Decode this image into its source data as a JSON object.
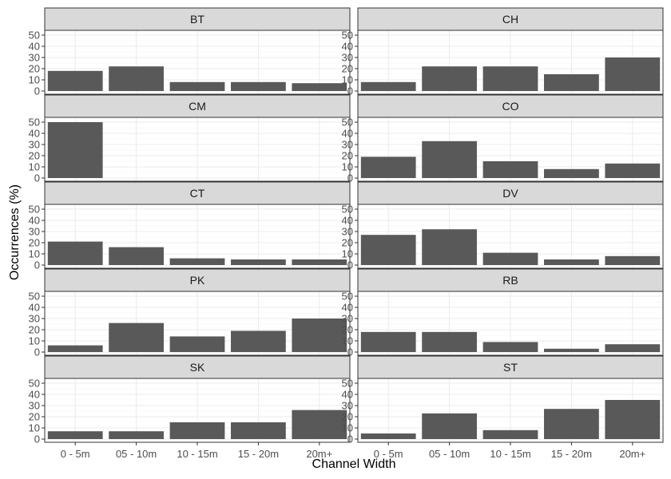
{
  "chart_data": {
    "type": "bar",
    "facet_layout": "2 columns x 5 rows",
    "xlabel": "Channel Width",
    "ylabel": "Occurrences (%)",
    "categories": [
      "0 - 5m",
      "05 - 10m",
      "10 - 15m",
      "15 - 20m",
      "20m+"
    ],
    "ylim": [
      0,
      50
    ],
    "yticks": [
      0,
      10,
      20,
      30,
      40,
      50
    ],
    "grid": true,
    "colors": {
      "bar": "#595959",
      "strip_fill": "#d9d9d9",
      "panel_border": "#333333",
      "grid_major": "#ebebeb",
      "grid_minor": "#f5f5f5"
    },
    "panels": [
      {
        "name": "BT",
        "values": [
          18,
          22,
          8,
          8,
          7
        ]
      },
      {
        "name": "CH",
        "values": [
          8,
          22,
          22,
          15,
          30
        ]
      },
      {
        "name": "CM",
        "values": [
          50,
          0,
          0,
          0,
          0
        ]
      },
      {
        "name": "CO",
        "values": [
          19,
          33,
          15,
          8,
          13
        ]
      },
      {
        "name": "CT",
        "values": [
          21,
          16,
          6,
          5,
          5
        ]
      },
      {
        "name": "DV",
        "values": [
          27,
          32,
          11,
          5,
          8
        ]
      },
      {
        "name": "PK",
        "values": [
          6,
          26,
          14,
          19,
          30
        ]
      },
      {
        "name": "RB",
        "values": [
          18,
          18,
          9,
          3,
          7
        ]
      },
      {
        "name": "SK",
        "values": [
          7,
          7,
          15,
          15,
          26
        ]
      },
      {
        "name": "ST",
        "values": [
          5,
          23,
          8,
          27,
          35
        ]
      }
    ]
  }
}
